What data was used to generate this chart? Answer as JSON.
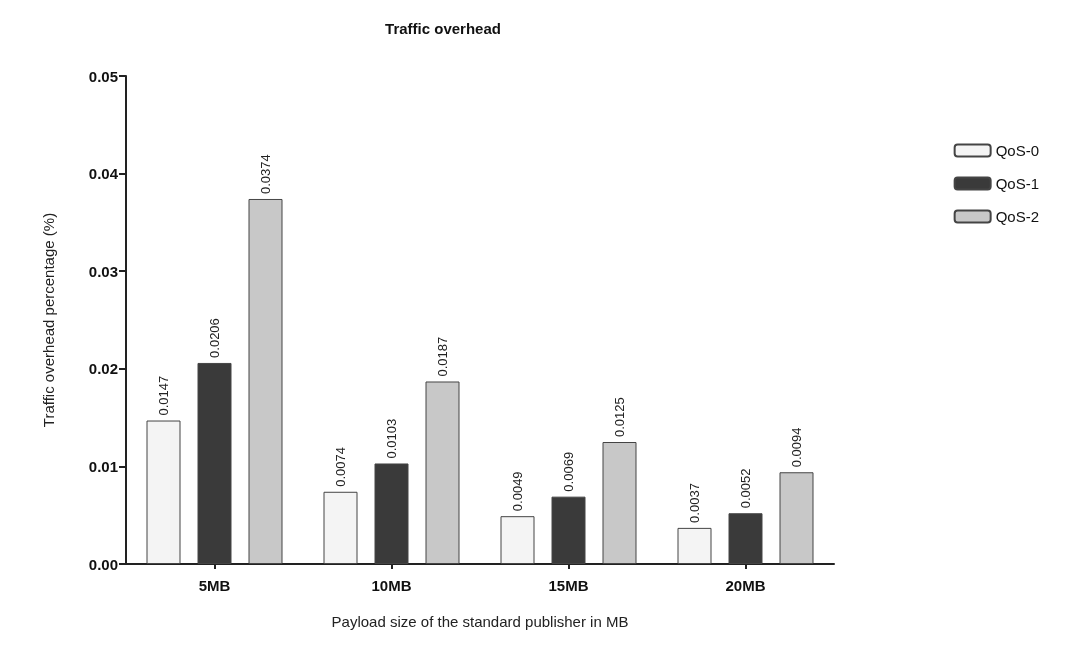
{
  "chart_data": {
    "type": "bar",
    "title": "Traffic overhead",
    "xlabel": "Payload size of the standard publisher in MB",
    "ylabel": "Traffic overhead percentage (%)",
    "categories": [
      "5MB",
      "10MB",
      "15MB",
      "20MB"
    ],
    "series": [
      {
        "name": "QoS-0",
        "color": "#f4f4f4",
        "values": [
          0.0147,
          0.0074,
          0.0049,
          0.0037
        ]
      },
      {
        "name": "QoS-1",
        "color": "#3a3a3a",
        "values": [
          0.0206,
          0.0103,
          0.0069,
          0.0052
        ]
      },
      {
        "name": "QoS-2",
        "color": "#c8c8c8",
        "values": [
          0.0374,
          0.0187,
          0.0125,
          0.0094
        ]
      }
    ],
    "ylim": [
      0,
      0.05
    ],
    "yticks": [
      {
        "value": 0,
        "label": "0.00"
      },
      0.01,
      0.02,
      0.03,
      0.04,
      0.05
    ],
    "data_labels": true,
    "grid": false,
    "legend": "right"
  }
}
